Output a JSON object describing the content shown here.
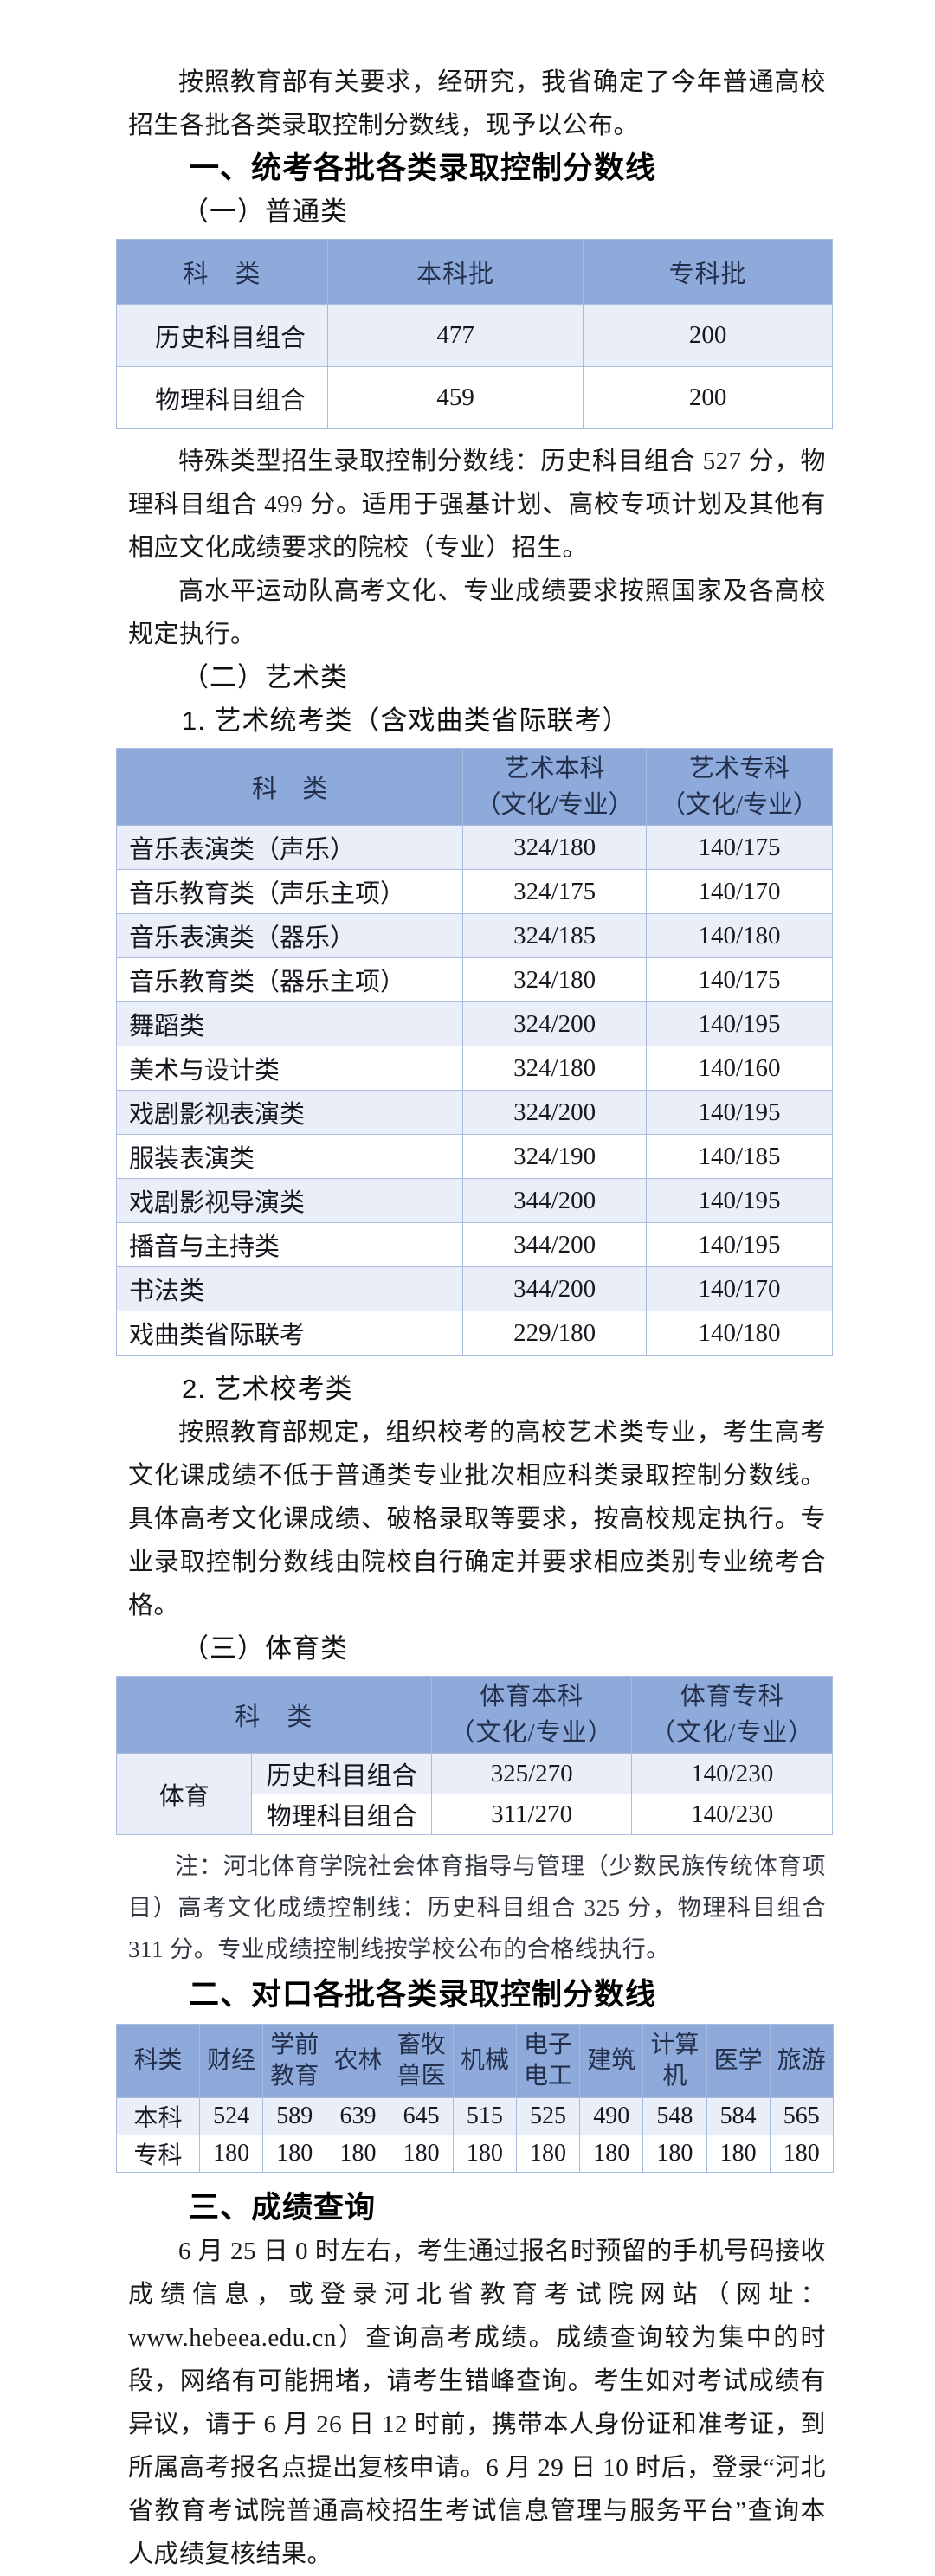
{
  "colors": {
    "table_header_bg": "#8EAADB",
    "table_band_bg": "#E9EEF8",
    "table_border": "#A9BCDF",
    "body_text": "#1A1A1A"
  },
  "intro": "按照教育部有关要求，经研究，我省确定了今年普通高校招生各批各类录取控制分数线，现予以公布。",
  "section1": {
    "heading": "一、统考各批各类录取控制分数线",
    "general_heading": "（一）普通类",
    "general_table": {
      "headers": [
        "科　类",
        "本科批",
        "专科批"
      ],
      "rows": [
        [
          "历史科目组合",
          "477",
          "200"
        ],
        [
          "物理科目组合",
          "459",
          "200"
        ]
      ]
    },
    "para_special": "特殊类型招生录取控制分数线：历史科目组合 527 分，物理科目组合 499 分。适用于强基计划、高校专项计划及其他有相应文化成绩要求的院校（专业）招生。",
    "para_team": "高水平运动队高考文化、专业成绩要求按照国家及各高校规定执行。",
    "art_heading": "（二）艺术类",
    "art_unified_heading": "1. 艺术统考类（含戏曲类省际联考）",
    "art_table": {
      "col_class": "科　类",
      "col_bk": [
        "艺术本科",
        "（文化/专业）"
      ],
      "col_zk": [
        "艺术专科",
        "（文化/专业）"
      ],
      "rows": [
        [
          "音乐表演类（声乐）",
          "324/180",
          "140/175"
        ],
        [
          "音乐教育类（声乐主项）",
          "324/175",
          "140/170"
        ],
        [
          "音乐表演类（器乐）",
          "324/185",
          "140/180"
        ],
        [
          "音乐教育类（器乐主项）",
          "324/180",
          "140/175"
        ],
        [
          "舞蹈类",
          "324/200",
          "140/195"
        ],
        [
          "美术与设计类",
          "324/180",
          "140/160"
        ],
        [
          "戏剧影视表演类",
          "324/200",
          "140/195"
        ],
        [
          "服装表演类",
          "324/190",
          "140/185"
        ],
        [
          "戏剧影视导演类",
          "344/200",
          "140/195"
        ],
        [
          "播音与主持类",
          "344/200",
          "140/195"
        ],
        [
          "书法类",
          "344/200",
          "140/170"
        ],
        [
          "戏曲类省际联考",
          "229/180",
          "140/180"
        ]
      ]
    },
    "art_school_heading": "2. 艺术校考类",
    "para_art_school": "按照教育部规定，组织校考的高校艺术类专业，考生高考文化课成绩不低于普通类专业批次相应科类录取控制分数线。具体高考文化课成绩、破格录取等要求，按高校规定执行。专业录取控制分数线由院校自行确定并要求相应类别专业统考合格。",
    "pe_heading": "（三）体育类",
    "pe_table": {
      "col_class": "科　类",
      "col_bk": [
        "体育本科",
        "（文化/专业）"
      ],
      "col_zk": [
        "体育专科",
        "（文化/专业）"
      ],
      "group": "体育",
      "rows": [
        [
          "历史科目组合",
          "325/270",
          "140/230"
        ],
        [
          "物理科目组合",
          "311/270",
          "140/230"
        ]
      ]
    },
    "note": "注：河北体育学院社会体育指导与管理（少数民族传统体育项目）高考文化成绩控制线：历史科目组合 325 分，物理科目组合 311 分。专业成绩控制线按学校公布的合格线执行。"
  },
  "section2": {
    "heading": "二、对口各批各类录取控制分数线",
    "table": {
      "headers": [
        "科类",
        "财经",
        "学前教育",
        "农林",
        "畜牧兽医",
        "机械",
        "电子电工",
        "建筑",
        "计算机",
        "医学",
        "旅游"
      ],
      "rows": [
        [
          "本科",
          "524",
          "589",
          "639",
          "645",
          "515",
          "525",
          "490",
          "548",
          "584",
          "565"
        ],
        [
          "专科",
          "180",
          "180",
          "180",
          "180",
          "180",
          "180",
          "180",
          "180",
          "180",
          "180"
        ]
      ]
    }
  },
  "section3": {
    "heading": "三、成绩查询",
    "para": "6 月 25 日 0 时左右，考生通过报名时预留的手机号码接收成绩信息，或登录河北省教育考试院网站（网址：www.hebeea.edu.cn）查询高考成绩。成绩查询较为集中的时段，网络有可能拥堵，请考生错峰查询。考生如对考试成绩有异议，请于 6 月 26 日 12 时前，携带本人身份证和准考证，到所属高考报名点提出复核申请。6 月 29 日 10 时后，登录“河北省教育考试院普通高校招生考试信息管理与服务平台”查询本人成绩复核结果。"
  }
}
